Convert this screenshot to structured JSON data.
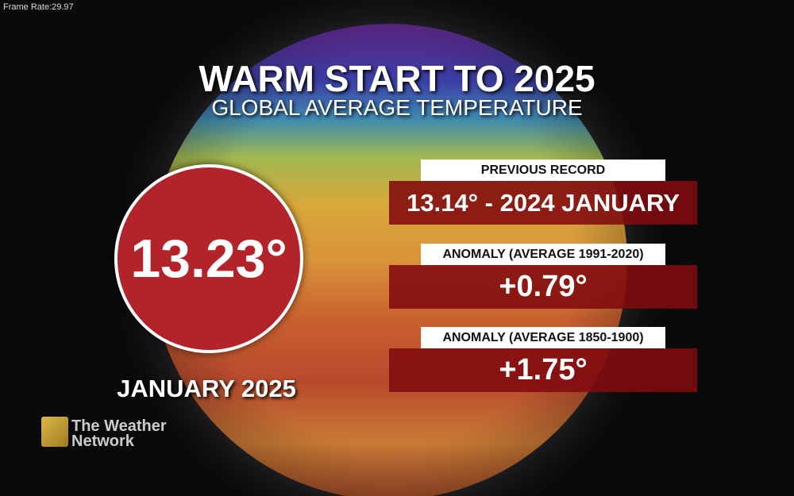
{
  "frame_rate": "Frame Rate:29.97",
  "header": {
    "title": "WARM START TO 2025",
    "subtitle": "GLOBAL AVERAGE TEMPERATURE"
  },
  "main": {
    "value": "13.23°",
    "label": "JANUARY 2025"
  },
  "panels": [
    {
      "label": "PREVIOUS RECORD",
      "value": "13.14° - 2024 JANUARY"
    },
    {
      "label": "ANOMALY (AVERAGE 1991-2020)",
      "value": "+0.79°"
    },
    {
      "label": "ANOMALY (AVERAGE 1850-1900)",
      "value": "+1.75°"
    }
  ],
  "logo": {
    "line1": "The Weather",
    "line2": "Network"
  }
}
